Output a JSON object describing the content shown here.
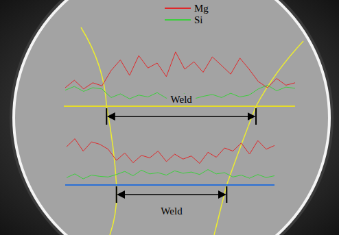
{
  "chart_data": {
    "type": "line",
    "legend": "top",
    "tick_labels": false,
    "xlim": [
      0,
      100
    ],
    "ylim": [
      0,
      100
    ],
    "scans": [
      {
        "color": "#e6dc28",
        "label": "Weld",
        "weld": [
          18,
          83
        ],
        "x": [
          0,
          4,
          8,
          12,
          16,
          20,
          24,
          28,
          32,
          36,
          40,
          44,
          48,
          52,
          56,
          60,
          64,
          68,
          72,
          76,
          80,
          84,
          88,
          92,
          96,
          100
        ],
        "series": [
          {
            "name": "Mg",
            "color": "#e0282a",
            "values": [
              30,
              42,
              28,
              38,
              33,
              58,
              75,
              50,
              82,
              62,
              70,
              48,
              88,
              60,
              72,
              55,
              80,
              66,
              52,
              78,
              60,
              40,
              30,
              45,
              34,
              38
            ]
          },
          {
            "name": "Si",
            "color": "#3ccf3c",
            "values": [
              26,
              32,
              24,
              30,
              28,
              14,
              20,
              12,
              18,
              15,
              22,
              13,
              17,
              20,
              12,
              16,
              19,
              14,
              21,
              15,
              18,
              28,
              34,
              25,
              31,
              29
            ]
          }
        ]
      },
      {
        "color": "#2a6fd6",
        "label": "Weld",
        "weld": [
          24,
          77
        ],
        "x": [
          0,
          4,
          8,
          12,
          16,
          20,
          24,
          28,
          32,
          36,
          40,
          44,
          48,
          52,
          56,
          60,
          64,
          68,
          72,
          76,
          80,
          84,
          88,
          92,
          96,
          100
        ],
        "series": [
          {
            "name": "Mg",
            "color": "#e0282a",
            "values": [
              62,
              75,
              55,
              70,
              66,
              58,
              40,
              52,
              36,
              48,
              44,
              55,
              38,
              50,
              42,
              47,
              35,
              53,
              45,
              60,
              55,
              68,
              50,
              72,
              58,
              64
            ]
          },
          {
            "name": "Si",
            "color": "#3ccf3c",
            "values": [
              12,
              18,
              10,
              16,
              14,
              13,
              17,
              22,
              15,
              24,
              18,
              20,
              16,
              23,
              19,
              21,
              17,
              25,
              18,
              20,
              13,
              16,
              11,
              17,
              12,
              15
            ]
          }
        ]
      }
    ]
  }
}
